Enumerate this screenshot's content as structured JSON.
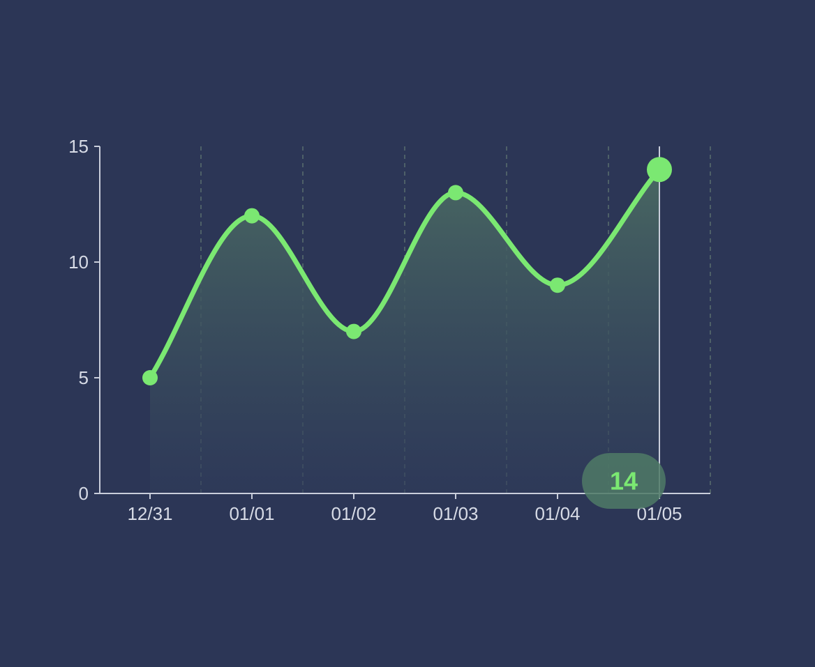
{
  "colors": {
    "background": "#2c3656",
    "line": "#7be872",
    "axis": "#c9cedb",
    "grid": "#5a6e6e",
    "tick_text": "#d7dbe6",
    "tooltip_bg": "#4f7a66",
    "area_top": "#4a6a63",
    "area_bottom": "#2f3b5a"
  },
  "chart_data": {
    "type": "area",
    "categories": [
      "12/31",
      "01/01",
      "01/02",
      "01/03",
      "01/04",
      "01/05"
    ],
    "values": [
      5,
      12,
      7,
      13,
      9,
      14
    ],
    "ylim": [
      0,
      15
    ],
    "yticks": [
      0,
      5,
      10,
      15
    ],
    "grid": true,
    "smooth": true,
    "title": "",
    "xlabel": "",
    "ylabel": "",
    "highlight": {
      "category": "01/05",
      "value": 14,
      "label": "14"
    }
  }
}
